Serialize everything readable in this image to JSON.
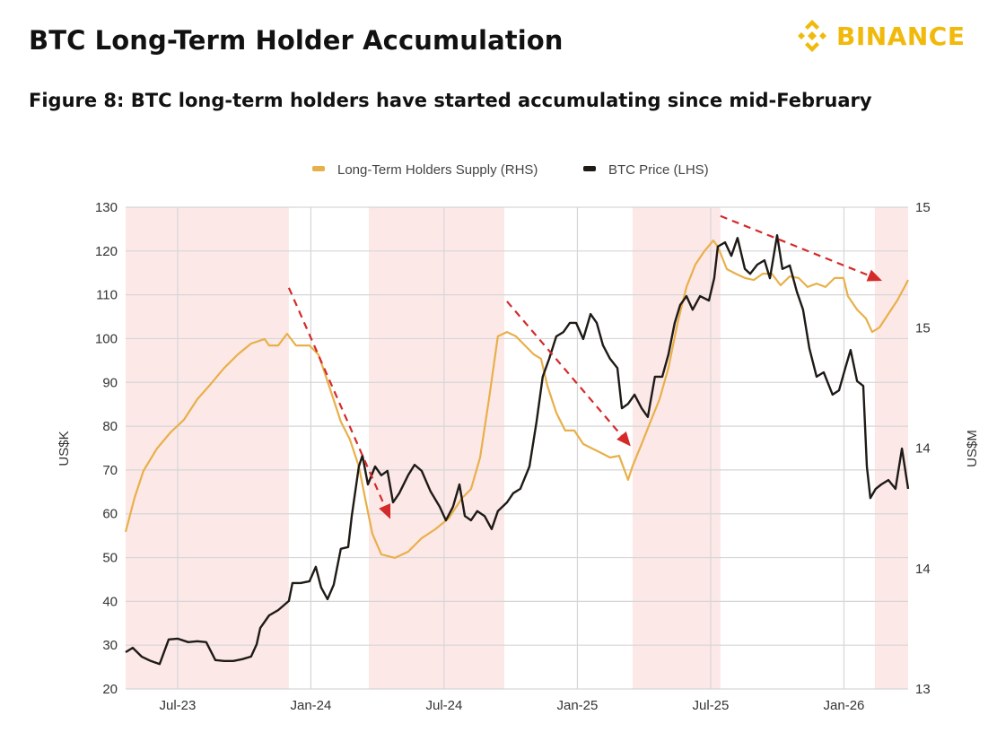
{
  "header": {
    "title": "BTC Long-Term Holder Accumulation",
    "subtitle": "Figure 8: BTC long-term holders have started accumulating since mid-February",
    "logo_text": "BINANCE"
  },
  "colors": {
    "brand": "#F0B90B",
    "supply_line": "#E8B04A",
    "price_line": "#1E1A16",
    "shade": "#FDE8E8",
    "arrow": "#D42A2A",
    "grid": "#D6D6D6"
  },
  "chart_data": {
    "type": "line",
    "title": "Figure 8: BTC long-term holders have started accumulating since mid-February",
    "x_unit": "months since Jan-23",
    "x_range": [
      3.66,
      38.89
    ],
    "x_ticks": [
      {
        "value": 6,
        "label": "Jul-23"
      },
      {
        "value": 12,
        "label": "Jan-24"
      },
      {
        "value": 18,
        "label": "Jul-24"
      },
      {
        "value": 24,
        "label": "Jan-25"
      },
      {
        "value": 30,
        "label": "Jul-25"
      },
      {
        "value": 36,
        "label": "Jan-26"
      }
    ],
    "y_left": {
      "label": "US$K",
      "range": [
        20,
        130
      ],
      "ticks": [
        {
          "value": 20,
          "label": "20"
        },
        {
          "value": 30,
          "label": "30"
        },
        {
          "value": 40,
          "label": "40"
        },
        {
          "value": 50,
          "label": "50"
        },
        {
          "value": 60,
          "label": "60"
        },
        {
          "value": 70,
          "label": "70"
        },
        {
          "value": 80,
          "label": "80"
        },
        {
          "value": 90,
          "label": "90"
        },
        {
          "value": 100,
          "label": "100"
        },
        {
          "value": 110,
          "label": "110"
        },
        {
          "value": 120,
          "label": "120"
        },
        {
          "value": 130,
          "label": "130"
        }
      ]
    },
    "y_right": {
      "label": "US$M",
      "range": [
        13,
        15
      ],
      "ticks": [
        {
          "value": 13,
          "label": "13"
        },
        {
          "value": 13.5,
          "label": "14"
        },
        {
          "value": 14,
          "label": "14"
        },
        {
          "value": 14.5,
          "label": "15"
        },
        {
          "value": 15,
          "label": "15"
        }
      ]
    },
    "grid": true,
    "legend_position": "top-center",
    "legend": [
      {
        "name": "Long-Term Holders Supply (RHS)",
        "series": "supply"
      },
      {
        "name": "BTC Price (LHS)",
        "series": "price"
      }
    ],
    "shaded_periods": [
      [
        3.66,
        11.01
      ],
      [
        14.61,
        20.71
      ],
      [
        26.48,
        30.44
      ],
      [
        37.39,
        38.89
      ]
    ],
    "arrows": [
      {
        "axis": "left",
        "from": [
          11.01,
          111.6
        ],
        "to": [
          15.58,
          58.8
        ]
      },
      {
        "axis": "left",
        "from": [
          20.83,
          108.5
        ],
        "to": [
          26.4,
          75.4
        ]
      },
      {
        "axis": "left",
        "from": [
          30.44,
          128.0
        ],
        "to": [
          37.72,
          113.2
        ]
      }
    ],
    "series": [
      {
        "name": "Long-Term Holders Supply (RHS)",
        "key": "supply",
        "axis": "right",
        "points": [
          [
            3.66,
            13.652
          ],
          [
            4.06,
            13.793
          ],
          [
            4.46,
            13.905
          ],
          [
            5.07,
            13.998
          ],
          [
            5.68,
            14.065
          ],
          [
            6.28,
            14.117
          ],
          [
            6.89,
            14.203
          ],
          [
            7.49,
            14.266
          ],
          [
            8.1,
            14.333
          ],
          [
            8.71,
            14.389
          ],
          [
            9.31,
            14.434
          ],
          [
            9.92,
            14.453
          ],
          [
            10.12,
            14.426
          ],
          [
            10.53,
            14.426
          ],
          [
            10.93,
            14.475
          ],
          [
            11.33,
            14.426
          ],
          [
            11.94,
            14.426
          ],
          [
            12.34,
            14.389
          ],
          [
            12.55,
            14.333
          ],
          [
            12.95,
            14.222
          ],
          [
            13.35,
            14.11
          ],
          [
            13.76,
            14.035
          ],
          [
            14.16,
            13.924
          ],
          [
            14.48,
            13.775
          ],
          [
            14.77,
            13.644
          ],
          [
            15.17,
            13.559
          ],
          [
            15.78,
            13.544
          ],
          [
            16.38,
            13.57
          ],
          [
            16.99,
            13.626
          ],
          [
            17.6,
            13.663
          ],
          [
            18.2,
            13.708
          ],
          [
            18.81,
            13.793
          ],
          [
            19.21,
            13.83
          ],
          [
            19.62,
            13.961
          ],
          [
            20.02,
            14.203
          ],
          [
            20.42,
            14.464
          ],
          [
            20.83,
            14.482
          ],
          [
            21.23,
            14.464
          ],
          [
            21.64,
            14.426
          ],
          [
            22.04,
            14.389
          ],
          [
            22.36,
            14.371
          ],
          [
            22.65,
            14.259
          ],
          [
            23.05,
            14.147
          ],
          [
            23.45,
            14.073
          ],
          [
            23.86,
            14.073
          ],
          [
            24.26,
            14.017
          ],
          [
            24.67,
            13.998
          ],
          [
            25.07,
            13.98
          ],
          [
            25.47,
            13.961
          ],
          [
            25.88,
            13.968
          ],
          [
            26.28,
            13.868
          ],
          [
            26.48,
            13.924
          ],
          [
            26.89,
            14.017
          ],
          [
            27.29,
            14.11
          ],
          [
            27.7,
            14.203
          ],
          [
            28.1,
            14.333
          ],
          [
            28.51,
            14.52
          ],
          [
            28.91,
            14.669
          ],
          [
            29.31,
            14.762
          ],
          [
            29.72,
            14.818
          ],
          [
            30.12,
            14.862
          ],
          [
            30.32,
            14.836
          ],
          [
            30.73,
            14.743
          ],
          [
            31.13,
            14.724
          ],
          [
            31.54,
            14.706
          ],
          [
            31.94,
            14.698
          ],
          [
            32.34,
            14.724
          ],
          [
            32.75,
            14.724
          ],
          [
            33.15,
            14.676
          ],
          [
            33.56,
            14.713
          ],
          [
            33.96,
            14.706
          ],
          [
            34.36,
            14.669
          ],
          [
            34.77,
            14.683
          ],
          [
            35.17,
            14.669
          ],
          [
            35.58,
            14.706
          ],
          [
            35.98,
            14.706
          ],
          [
            36.18,
            14.631
          ],
          [
            36.59,
            14.575
          ],
          [
            36.99,
            14.538
          ],
          [
            37.27,
            14.482
          ],
          [
            37.6,
            14.501
          ],
          [
            38.0,
            14.557
          ],
          [
            38.4,
            14.613
          ],
          [
            38.73,
            14.669
          ],
          [
            38.89,
            14.698
          ]
        ]
      },
      {
        "name": "BTC Price (LHS)",
        "key": "price",
        "axis": "left",
        "points": [
          [
            3.66,
            28.4
          ],
          [
            3.98,
            29.4
          ],
          [
            4.38,
            27.4
          ],
          [
            4.79,
            26.4
          ],
          [
            5.19,
            25.7
          ],
          [
            5.6,
            31.3
          ],
          [
            6.0,
            31.5
          ],
          [
            6.48,
            30.7
          ],
          [
            6.89,
            30.9
          ],
          [
            7.29,
            30.7
          ],
          [
            7.7,
            26.6
          ],
          [
            8.1,
            26.4
          ],
          [
            8.51,
            26.4
          ],
          [
            8.91,
            26.8
          ],
          [
            9.31,
            27.4
          ],
          [
            9.56,
            30.2
          ],
          [
            9.72,
            33.9
          ],
          [
            10.12,
            36.8
          ],
          [
            10.53,
            38.0
          ],
          [
            11.01,
            40.1
          ],
          [
            11.17,
            44.2
          ],
          [
            11.54,
            44.2
          ],
          [
            11.94,
            44.6
          ],
          [
            12.22,
            47.9
          ],
          [
            12.46,
            43.2
          ],
          [
            12.75,
            40.5
          ],
          [
            13.03,
            43.8
          ],
          [
            13.35,
            52.0
          ],
          [
            13.68,
            52.4
          ],
          [
            13.84,
            59.5
          ],
          [
            14.16,
            70.8
          ],
          [
            14.32,
            73.3
          ],
          [
            14.57,
            66.7
          ],
          [
            14.89,
            70.8
          ],
          [
            15.17,
            68.8
          ],
          [
            15.45,
            69.8
          ],
          [
            15.7,
            62.6
          ],
          [
            15.98,
            64.7
          ],
          [
            16.38,
            68.8
          ],
          [
            16.67,
            71.2
          ],
          [
            16.99,
            69.8
          ],
          [
            17.39,
            65.1
          ],
          [
            17.8,
            61.6
          ],
          [
            18.08,
            58.5
          ],
          [
            18.4,
            61.6
          ],
          [
            18.69,
            66.7
          ],
          [
            18.93,
            59.5
          ],
          [
            19.21,
            58.5
          ],
          [
            19.49,
            60.6
          ],
          [
            19.82,
            59.5
          ],
          [
            20.14,
            56.5
          ],
          [
            20.42,
            60.6
          ],
          [
            20.83,
            62.6
          ],
          [
            21.11,
            64.7
          ],
          [
            21.43,
            65.7
          ],
          [
            21.84,
            70.8
          ],
          [
            22.16,
            81.0
          ],
          [
            22.44,
            91.3
          ],
          [
            22.73,
            95.4
          ],
          [
            23.05,
            100.5
          ],
          [
            23.37,
            101.5
          ],
          [
            23.66,
            103.6
          ],
          [
            23.94,
            103.6
          ],
          [
            24.26,
            99.9
          ],
          [
            24.59,
            105.6
          ],
          [
            24.87,
            103.6
          ],
          [
            25.15,
            98.5
          ],
          [
            25.47,
            95.4
          ],
          [
            25.8,
            93.3
          ],
          [
            26.0,
            84.1
          ],
          [
            26.28,
            85.1
          ],
          [
            26.57,
            87.2
          ],
          [
            26.89,
            84.1
          ],
          [
            27.17,
            82.1
          ],
          [
            27.49,
            91.3
          ],
          [
            27.82,
            91.3
          ],
          [
            28.1,
            96.4
          ],
          [
            28.38,
            103.6
          ],
          [
            28.63,
            107.7
          ],
          [
            28.91,
            109.7
          ],
          [
            29.19,
            106.6
          ],
          [
            29.52,
            109.7
          ],
          [
            29.92,
            108.7
          ],
          [
            30.16,
            113.8
          ],
          [
            30.32,
            121.0
          ],
          [
            30.65,
            122.0
          ],
          [
            30.93,
            118.9
          ],
          [
            31.21,
            123.0
          ],
          [
            31.54,
            115.9
          ],
          [
            31.78,
            114.8
          ],
          [
            32.1,
            116.9
          ],
          [
            32.42,
            117.9
          ],
          [
            32.67,
            113.8
          ],
          [
            32.99,
            123.6
          ],
          [
            33.23,
            115.9
          ],
          [
            33.56,
            116.7
          ],
          [
            33.88,
            110.7
          ],
          [
            34.16,
            106.6
          ],
          [
            34.44,
            97.8
          ],
          [
            34.77,
            91.3
          ],
          [
            35.09,
            92.3
          ],
          [
            35.49,
            87.2
          ],
          [
            35.78,
            88.2
          ],
          [
            36.06,
            93.3
          ],
          [
            36.3,
            97.4
          ],
          [
            36.59,
            90.3
          ],
          [
            36.87,
            89.2
          ],
          [
            37.03,
            70.8
          ],
          [
            37.19,
            63.6
          ],
          [
            37.43,
            65.7
          ],
          [
            37.68,
            66.7
          ],
          [
            38.0,
            67.7
          ],
          [
            38.32,
            65.7
          ],
          [
            38.61,
            74.9
          ],
          [
            38.89,
            65.7
          ]
        ]
      }
    ]
  }
}
